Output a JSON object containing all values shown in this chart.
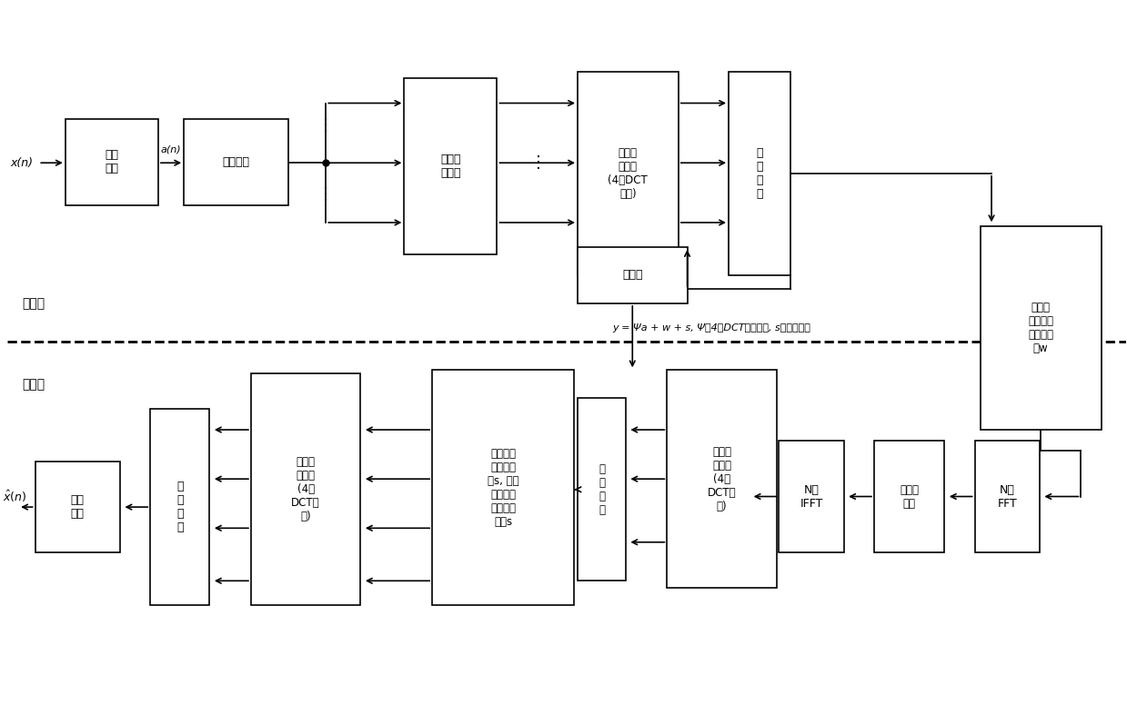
{
  "bg_color": "#ffffff",
  "fig_width": 12.39,
  "fig_height": 7.76,
  "dpi": 100,
  "tx_label": "发送端",
  "rx_label": "接送端",
  "channel_text": "y = Ψa + w + s, Ψ为4型DCT变换矩阵, s为时域干扰"
}
